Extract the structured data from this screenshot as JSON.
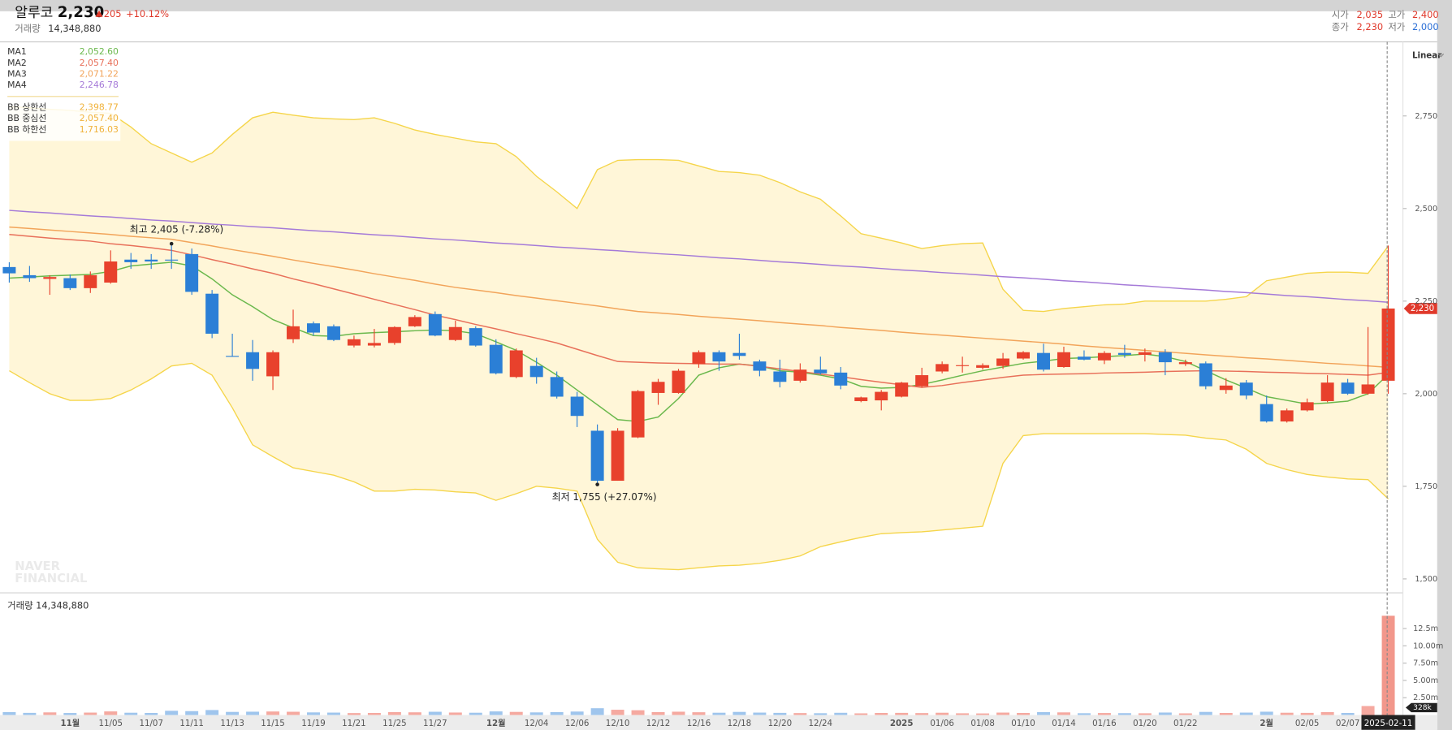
{
  "header": {
    "name": "알루코",
    "price": "2,230",
    "change": "205",
    "change_pct": "+10.12%",
    "volume_label": "거래량",
    "volume": "14,348,880",
    "open_label": "시가",
    "open": "2,035",
    "high_label": "고가",
    "high": "2,400",
    "close_label": "종가",
    "close": "2,230",
    "low_label": "저가",
    "low": "2,000",
    "scale_mode": "Linear",
    "watermark": [
      "NAVER",
      "FINANCIAL"
    ]
  },
  "chart_data": {
    "type": "candlestick",
    "categories": [
      null,
      null,
      null,
      "11월",
      null,
      "11/05",
      null,
      "11/07",
      null,
      "11/11",
      null,
      "11/13",
      null,
      "11/15",
      null,
      "11/19",
      null,
      "11/21",
      null,
      "11/25",
      null,
      "11/27",
      null,
      null,
      "12월",
      null,
      "12/04",
      null,
      "12/06",
      null,
      "12/10",
      null,
      "12/12",
      null,
      "12/16",
      null,
      "12/18",
      null,
      "12/20",
      null,
      "12/24",
      null,
      null,
      null,
      "2025",
      null,
      "01/06",
      null,
      "01/08",
      null,
      "01/10",
      null,
      "01/14",
      null,
      "01/16",
      null,
      "01/20",
      null,
      "01/22",
      null,
      null,
      null,
      "2월",
      null,
      "02/05",
      null,
      "02/07",
      null,
      "2025-02-11"
    ],
    "open": [
      2342,
      2320,
      2310,
      2312,
      2285,
      2300,
      2362,
      2362,
      2362,
      2377,
      2270,
      2102,
      2112,
      2047,
      2147,
      2190,
      2182,
      2130,
      2130,
      2137,
      2182,
      2215,
      2145,
      2177,
      2132,
      2045,
      2075,
      2045,
      1992,
      1900,
      1765,
      1882,
      2002,
      2002,
      2080,
      2112,
      2110,
      2087,
      2060,
      2035,
      2065,
      2057,
      1980,
      1982,
      1992,
      2020,
      2060,
      2075,
      2070,
      2075,
      2095,
      2110,
      2072,
      2100,
      2090,
      2110,
      2105,
      2112,
      2080,
      2082,
      2010,
      2030,
      1972,
      1925,
      1955,
      1980,
      2030,
      2000,
      2035
    ],
    "high": [
      2355,
      2345,
      2320,
      2322,
      2330,
      2387,
      2380,
      2377,
      2405,
      2392,
      2280,
      2162,
      2145,
      2117,
      2227,
      2195,
      2187,
      2157,
      2175,
      2182,
      2212,
      2222,
      2197,
      2182,
      2147,
      2122,
      2097,
      2060,
      2005,
      1917,
      1907,
      2010,
      2040,
      2067,
      2117,
      2117,
      2162,
      2092,
      2092,
      2082,
      2100,
      2072,
      1992,
      2010,
      2032,
      2070,
      2087,
      2100,
      2082,
      2110,
      2115,
      2135,
      2127,
      2117,
      2115,
      2132,
      2122,
      2120,
      2092,
      2087,
      2042,
      2037,
      1995,
      1960,
      1987,
      2050,
      2040,
      2180,
      2400
    ],
    "low": [
      2300,
      2302,
      2267,
      2280,
      2272,
      2297,
      2337,
      2337,
      2337,
      2267,
      2150,
      2100,
      2035,
      2010,
      2137,
      2157,
      2142,
      2125,
      2125,
      2132,
      2180,
      2155,
      2142,
      2127,
      2052,
      2042,
      2027,
      1987,
      1910,
      1755,
      1765,
      1880,
      1970,
      2000,
      2070,
      2062,
      2092,
      2047,
      2017,
      2030,
      2052,
      2012,
      1977,
      1955,
      1990,
      2017,
      2055,
      2057,
      2065,
      2067,
      2092,
      2060,
      2070,
      2090,
      2080,
      2097,
      2087,
      2050,
      2075,
      2012,
      2000,
      1985,
      1922,
      1922,
      1952,
      1977,
      1997,
      1997,
      2000
    ],
    "close": [
      2325,
      2312,
      2315,
      2285,
      2320,
      2357,
      2355,
      2357,
      2360,
      2275,
      2162,
      2100,
      2067,
      2112,
      2182,
      2165,
      2145,
      2147,
      2137,
      2180,
      2207,
      2157,
      2180,
      2130,
      2055,
      2117,
      2045,
      1992,
      1940,
      1765,
      1900,
      2007,
      2032,
      2062,
      2112,
      2087,
      2102,
      2062,
      2032,
      2065,
      2055,
      2022,
      1990,
      2005,
      2030,
      2050,
      2080,
      2077,
      2077,
      2095,
      2112,
      2065,
      2112,
      2092,
      2110,
      2105,
      2112,
      2085,
      2085,
      2020,
      2022,
      1995,
      1925,
      1955,
      1977,
      2030,
      2000,
      2025,
      2230
    ],
    "close_label": "2,230",
    "up_color": "#e8412c",
    "down_color": "#2b7fd6",
    "ylim": [
      1462.5,
      2950
    ],
    "yticks": [
      {
        "value": 1500,
        "label": "1,500"
      },
      {
        "value": 1750,
        "label": "1,750"
      },
      {
        "value": 2000,
        "label": "2,000"
      },
      {
        "value": 2250,
        "label": "2,250"
      },
      {
        "value": 2500,
        "label": "2,500"
      },
      {
        "value": 2750,
        "label": "2,750"
      }
    ],
    "lines": [
      {
        "name": "MA1",
        "color": "#6ab84c",
        "legend_value": "2,052.60",
        "values": [
          2312,
          2315,
          2318,
          2320,
          2322,
          2330,
          2345,
          2350,
          2355,
          2345,
          2310,
          2267,
          2235,
          2200,
          2178,
          2157,
          2155,
          2162,
          2165,
          2167,
          2170,
          2172,
          2170,
          2162,
          2140,
          2117,
          2085,
          2050,
          2010,
          1970,
          1930,
          1925,
          1937,
          1987,
          2050,
          2070,
          2080,
          2075,
          2062,
          2058,
          2050,
          2040,
          2020,
          2015,
          2017,
          2025,
          2037,
          2050,
          2062,
          2072,
          2082,
          2088,
          2095,
          2097,
          2100,
          2103,
          2107,
          2100,
          2087,
          2062,
          2037,
          2015,
          1992,
          1982,
          1972,
          1975,
          1980,
          2000,
          2052.6
        ]
      },
      {
        "name": "MA2",
        "color": "#e8705a",
        "legend_value": "2,057.40",
        "values": [
          2430,
          2425,
          2420,
          2416,
          2412,
          2405,
          2400,
          2394,
          2387,
          2375,
          2362,
          2350,
          2337,
          2325,
          2310,
          2297,
          2283,
          2269,
          2255,
          2241,
          2227,
          2212,
          2200,
          2187,
          2175,
          2162,
          2150,
          2137,
          2120,
          2103,
          2087,
          2085,
          2083,
          2082,
          2081,
          2080,
          2080,
          2074,
          2067,
          2060,
          2053,
          2046,
          2038,
          2031,
          2024,
          2017,
          2022,
          2030,
          2037,
          2044,
          2050,
          2052,
          2053,
          2054,
          2056,
          2057,
          2058,
          2060,
          2061,
          2062,
          2061,
          2060,
          2058,
          2057,
          2055,
          2054,
          2052,
          2050,
          2057.4
        ]
      },
      {
        "name": "MA3",
        "color": "#f2a45a",
        "legend_value": "2,071.22",
        "values": [
          2450,
          2446,
          2442,
          2438,
          2434,
          2430,
          2425,
          2421,
          2417,
          2408,
          2399,
          2389,
          2380,
          2371,
          2361,
          2352,
          2343,
          2334,
          2324,
          2315,
          2306,
          2296,
          2287,
          2280,
          2273,
          2265,
          2258,
          2251,
          2244,
          2237,
          2229,
          2222,
          2218,
          2214,
          2209,
          2205,
          2201,
          2197,
          2192,
          2188,
          2184,
          2179,
          2175,
          2171,
          2166,
          2162,
          2158,
          2154,
          2150,
          2146,
          2142,
          2138,
          2134,
          2129,
          2125,
          2121,
          2117,
          2113,
          2109,
          2105,
          2101,
          2097,
          2094,
          2090,
          2086,
          2082,
          2079,
          2075,
          2071.22
        ]
      },
      {
        "name": "MA4",
        "color": "#a57ad8",
        "legend_value": "2,246.78",
        "values": [
          2495,
          2491,
          2488,
          2484,
          2480,
          2477,
          2473,
          2469,
          2466,
          2462,
          2458,
          2455,
          2451,
          2448,
          2444,
          2440,
          2437,
          2433,
          2429,
          2426,
          2422,
          2418,
          2415,
          2411,
          2407,
          2404,
          2400,
          2396,
          2393,
          2389,
          2386,
          2382,
          2378,
          2375,
          2371,
          2367,
          2364,
          2360,
          2356,
          2353,
          2349,
          2345,
          2342,
          2338,
          2334,
          2331,
          2327,
          2324,
          2320,
          2316,
          2313,
          2309,
          2305,
          2302,
          2298,
          2294,
          2291,
          2287,
          2283,
          2280,
          2276,
          2273,
          2269,
          2265,
          2262,
          2258,
          2254,
          2251,
          2246.78
        ]
      }
    ],
    "bands": {
      "color": "#f5d54a",
      "fill": "#fff6d8",
      "label_color": "#f0b23a",
      "upper": {
        "name": "BB 상한선",
        "legend_value": "2,398.77",
        "values": [
          2775,
          2772,
          2768,
          2765,
          2760,
          2757,
          2720,
          2675,
          2650,
          2625,
          2650,
          2700,
          2745,
          2760,
          2752,
          2745,
          2742,
          2740,
          2745,
          2730,
          2712,
          2700,
          2690,
          2680,
          2675,
          2640,
          2587,
          2545,
          2500,
          2605,
          2630,
          2632,
          2632,
          2630,
          2615,
          2600,
          2597,
          2590,
          2570,
          2545,
          2525,
          2480,
          2432,
          2420,
          2407,
          2392,
          2400,
          2405,
          2407,
          2282,
          2225,
          2222,
          2230,
          2235,
          2240,
          2242,
          2250,
          2250,
          2250,
          2250,
          2255,
          2262,
          2305,
          2315,
          2325,
          2328,
          2328,
          2325,
          2398.77
        ]
      },
      "middle": {
        "name": "BB 중심선",
        "legend_value": "2,057.40"
      },
      "lower": {
        "name": "BB 하한선",
        "legend_value": "1,716.03",
        "values": [
          2062,
          2030,
          2000,
          1982,
          1982,
          1987,
          2010,
          2040,
          2075,
          2082,
          2050,
          1962,
          1862,
          1830,
          1800,
          1790,
          1780,
          1762,
          1737,
          1737,
          1742,
          1740,
          1735,
          1732,
          1712,
          1730,
          1750,
          1745,
          1737,
          1607,
          1545,
          1530,
          1527,
          1525,
          1530,
          1535,
          1537,
          1542,
          1550,
          1562,
          1587,
          1600,
          1612,
          1622,
          1625,
          1627,
          1632,
          1637,
          1642,
          1812,
          1887,
          1892,
          1892,
          1892,
          1892,
          1892,
          1892,
          1890,
          1888,
          1880,
          1875,
          1850,
          1812,
          1795,
          1782,
          1775,
          1770,
          1768,
          1716.03
        ]
      }
    },
    "annotations": {
      "max": "최고 2,405 (-7.28%)",
      "min": "최저 1,755 (+27.07%)"
    },
    "volume": {
      "title": "거래량 14,348,880",
      "values": [
        420000,
        310000,
        380000,
        290000,
        350000,
        520000,
        330000,
        300000,
        610000,
        560000,
        720000,
        450000,
        480000,
        510000,
        470000,
        380000,
        350000,
        280000,
        300000,
        420000,
        390000,
        470000,
        360000,
        330000,
        520000,
        450000,
        380000,
        420000,
        500000,
        980000,
        760000,
        690000,
        420000,
        480000,
        400000,
        330000,
        450000,
        350000,
        310000,
        280000,
        260000,
        320000,
        240000,
        300000,
        310000,
        280000,
        330000,
        250000,
        230000,
        350000,
        300000,
        420000,
        380000,
        260000,
        290000,
        270000,
        250000,
        360000,
        240000,
        450000,
        300000,
        350000,
        480000,
        330000,
        310000,
        420000,
        300000,
        1300000,
        14348880
      ],
      "ylim": [
        0,
        17000000
      ],
      "yticks": [
        {
          "value": 2500000,
          "label": "2.50m"
        },
        {
          "value": 5000000,
          "label": "5.00m"
        },
        {
          "value": 7500000,
          "label": "7.50m"
        },
        {
          "value": 10000000,
          "label": "10.00m"
        },
        {
          "value": 12500000,
          "label": "12.5m"
        }
      ],
      "marker_label": "328k"
    }
  }
}
